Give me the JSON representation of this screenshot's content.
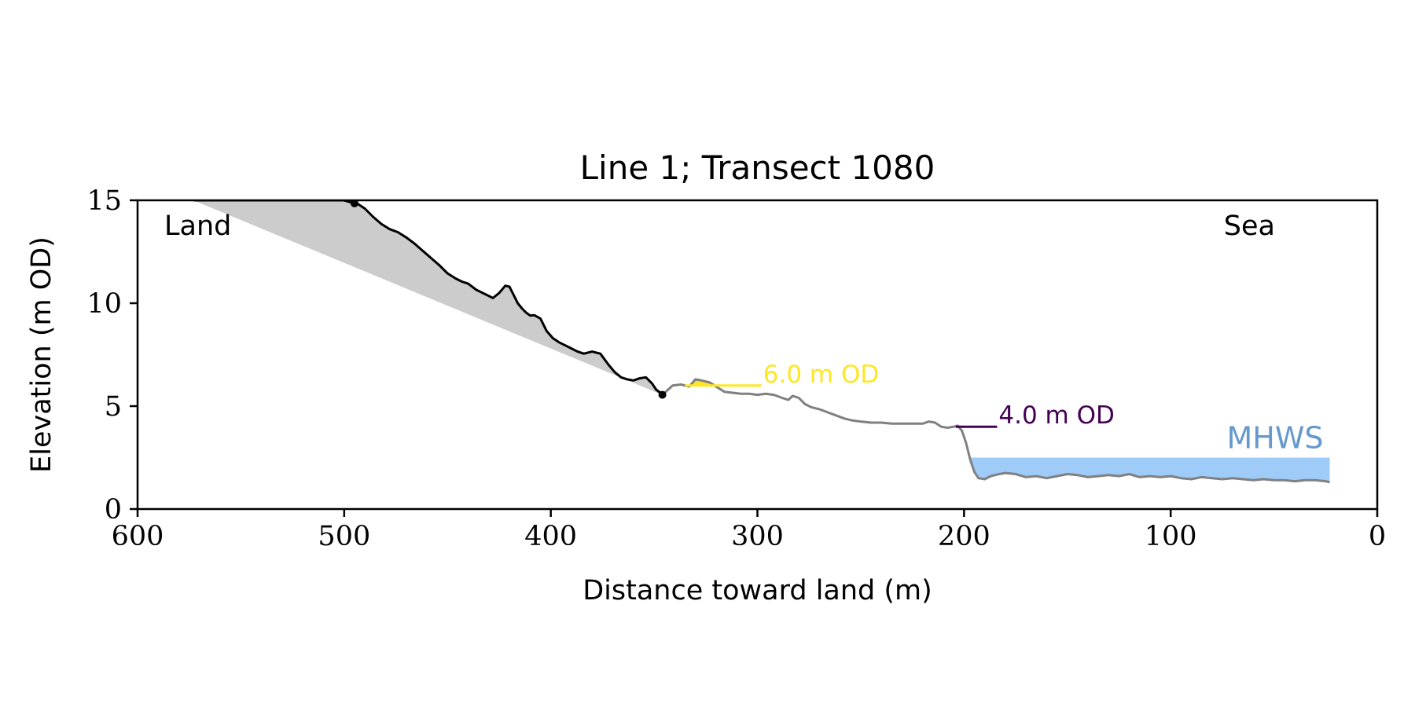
{
  "chart_data": {
    "type": "line",
    "title": "Line 1; Transect 1080",
    "xlabel": "Distance toward land (m)",
    "ylabel": "Elevation (m OD)",
    "xlim": [
      600,
      0
    ],
    "ylim": [
      0,
      15
    ],
    "x_reversed": true,
    "grid": false,
    "xticks": [
      600,
      500,
      400,
      300,
      200,
      100,
      0
    ],
    "yticks": [
      0,
      5,
      10,
      15
    ],
    "xtick_labels": [
      "600",
      "500",
      "400",
      "300",
      "200",
      "100",
      "0"
    ],
    "ytick_labels": [
      "0",
      "5",
      "10",
      "15"
    ],
    "corner_labels": {
      "left": "Land",
      "right": "Sea"
    },
    "colors": {
      "cliff_profile": "#000000",
      "beach_profile": "#808080",
      "cliff_fill": "#cccccc",
      "level_6m": "#fde725",
      "level_4m": "#440154",
      "mhws_fill": "#9ecbf7",
      "mhws_text": "#6699cc"
    },
    "series": [
      {
        "role": "cliff_profile",
        "x": [
          573,
          500,
          495,
          493,
          490,
          486,
          482,
          478,
          474,
          470,
          466,
          462,
          458,
          454,
          450,
          446,
          443,
          440,
          436,
          432,
          428,
          425,
          422,
          420,
          418,
          416,
          414,
          412,
          410,
          408,
          405,
          402,
          399,
          396,
          393,
          390,
          387,
          384,
          380,
          376,
          372,
          369,
          366,
          363,
          360,
          357,
          354,
          351,
          349,
          347,
          346
        ],
        "y": [
          15.0,
          15.0,
          14.85,
          14.8,
          14.6,
          14.2,
          13.85,
          13.6,
          13.45,
          13.2,
          12.9,
          12.55,
          12.2,
          11.85,
          11.45,
          11.2,
          11.05,
          10.95,
          10.65,
          10.45,
          10.25,
          10.5,
          10.85,
          10.8,
          10.4,
          10.0,
          9.75,
          9.55,
          9.4,
          9.42,
          9.25,
          8.65,
          8.3,
          8.1,
          7.95,
          7.8,
          7.65,
          7.55,
          7.65,
          7.55,
          7.0,
          6.65,
          6.4,
          6.3,
          6.25,
          6.35,
          6.4,
          6.1,
          5.8,
          5.65,
          5.55
        ]
      },
      {
        "role": "beach_profile",
        "x": [
          346,
          341,
          337,
          333,
          330,
          327,
          323,
          320,
          316,
          312,
          308,
          304,
          300,
          296,
          292,
          288,
          285,
          283,
          280,
          277,
          274,
          270,
          266,
          262,
          258,
          254,
          250,
          245,
          240,
          235,
          230,
          225,
          220,
          217,
          214,
          211,
          208,
          205,
          203,
          201,
          199,
          197,
          195,
          193,
          190,
          187,
          183,
          180,
          175,
          170,
          165,
          160,
          155,
          150,
          145,
          140,
          135,
          130,
          125,
          120,
          115,
          110,
          105,
          100,
          95,
          90,
          85,
          80,
          75,
          70,
          65,
          60,
          55,
          50,
          45,
          40,
          35,
          30,
          25,
          23
        ],
        "y": [
          5.55,
          6.0,
          6.05,
          5.95,
          6.3,
          6.25,
          6.15,
          5.95,
          5.7,
          5.65,
          5.6,
          5.6,
          5.55,
          5.6,
          5.55,
          5.4,
          5.3,
          5.5,
          5.4,
          5.1,
          4.95,
          4.85,
          4.7,
          4.55,
          4.4,
          4.3,
          4.25,
          4.2,
          4.2,
          4.15,
          4.15,
          4.15,
          4.15,
          4.25,
          4.2,
          4.0,
          3.95,
          4.0,
          4.05,
          3.8,
          3.2,
          2.4,
          1.8,
          1.5,
          1.45,
          1.6,
          1.7,
          1.75,
          1.7,
          1.55,
          1.6,
          1.5,
          1.6,
          1.7,
          1.65,
          1.55,
          1.6,
          1.65,
          1.6,
          1.7,
          1.55,
          1.6,
          1.55,
          1.6,
          1.5,
          1.45,
          1.55,
          1.5,
          1.45,
          1.5,
          1.45,
          1.4,
          1.45,
          1.4,
          1.4,
          1.35,
          1.4,
          1.4,
          1.35,
          1.3
        ]
      }
    ],
    "shaded_regions": [
      {
        "role": "cliff_fill",
        "upper_series": "cliff_profile",
        "lower_line": {
          "x": [
            573,
            346
          ],
          "y": [
            15.0,
            5.55
          ]
        }
      }
    ],
    "markers": [
      {
        "x": 495,
        "y": 14.85
      },
      {
        "x": 346,
        "y": 5.55
      }
    ],
    "levels": [
      {
        "label": "6.0 m OD",
        "y": 6.0,
        "x_start": 335,
        "x_end": 298,
        "color_key": "level_6m",
        "fill_to_profile": true
      },
      {
        "label": "4.0 m OD",
        "y": 4.0,
        "x_start": 204,
        "x_end": 184,
        "color_key": "level_4m"
      }
    ],
    "mhws": {
      "label": "MHWS",
      "y": 2.5,
      "x_start": 197,
      "x_end": 23
    }
  }
}
